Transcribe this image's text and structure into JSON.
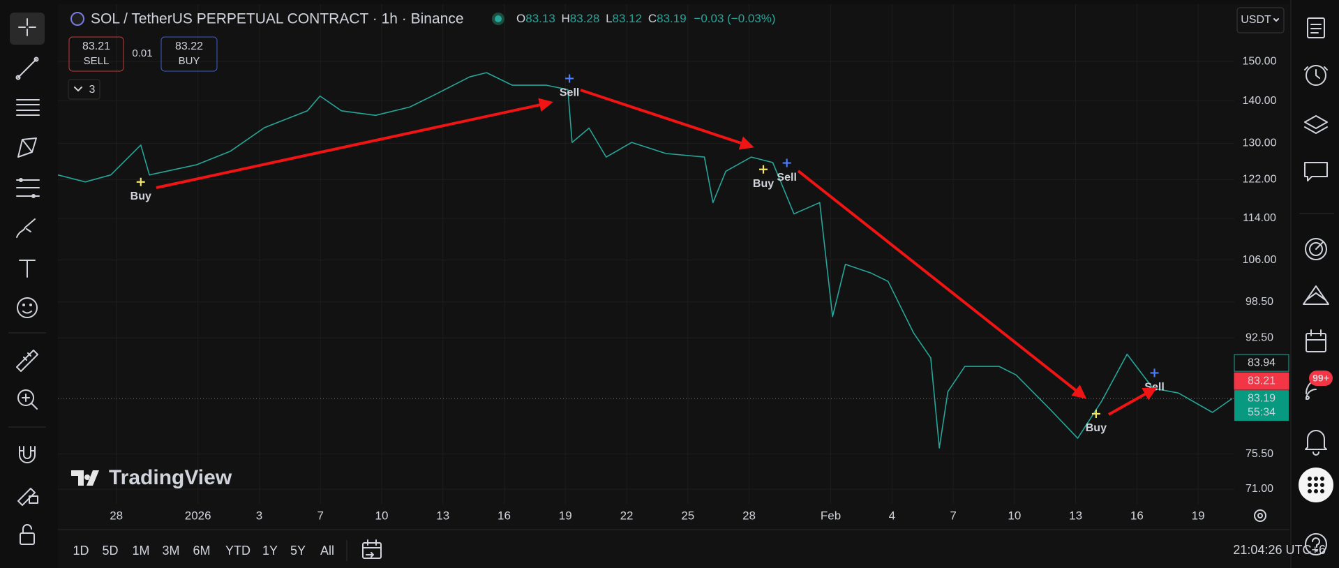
{
  "header": {
    "symbol_title": "SOL / TetherUS PERPETUAL CONTRACT · 1h · Binance",
    "ohlc": [
      {
        "key": "O",
        "value": 83.13
      },
      {
        "key": "H",
        "value": 83.28
      },
      {
        "key": "L",
        "value": 83.12
      },
      {
        "key": "C",
        "value": 83.19
      }
    ],
    "change": "−0.03 (−0.03%)"
  },
  "order_panel": {
    "sell_price": "83.21",
    "sell_label": "SELL",
    "quantity": "0.01",
    "buy_price": "83.22",
    "buy_label": "BUY"
  },
  "indicators_count": "3",
  "currency": "USDT",
  "logo": "TradingView",
  "notifications_badge": "99+",
  "bottom_bar": {
    "ranges": [
      "1D",
      "5D",
      "1M",
      "3M",
      "6M",
      "YTD",
      "1Y",
      "5Y",
      "All"
    ],
    "clock": "21:04:26 UTC+6"
  },
  "chart_data": {
    "type": "line",
    "log": true,
    "grid": true,
    "xlim": [
      -6.86,
      50.67
    ],
    "ylim": [
      69.2,
      165.8
    ],
    "xticks": [
      {
        "value": -4,
        "label": "28"
      },
      {
        "value": 0,
        "label": "2026"
      },
      3,
      {
        "value": 6,
        "label": "7"
      },
      {
        "value": 9,
        "label": "10"
      },
      {
        "value": 12,
        "label": "13"
      },
      {
        "value": 15,
        "label": "16"
      },
      {
        "value": 18,
        "label": "19"
      },
      {
        "value": 21,
        "label": "22"
      },
      {
        "value": 24,
        "label": "25"
      },
      {
        "value": 27,
        "label": "28"
      },
      {
        "value": 31,
        "label": "Feb"
      },
      {
        "value": 34,
        "label": "4"
      },
      {
        "value": 37,
        "label": "7"
      },
      {
        "value": 40,
        "label": "10"
      },
      {
        "value": 43,
        "label": "13"
      },
      {
        "value": 46,
        "label": "16"
      },
      {
        "value": 49,
        "label": "19"
      }
    ],
    "yticks": [
      {
        "value": 150,
        "label": "150.00"
      },
      {
        "value": 140,
        "label": "140.00"
      },
      {
        "value": 130,
        "label": "130.00"
      },
      {
        "value": 122,
        "label": "122.00"
      },
      {
        "value": 114,
        "label": "114.00"
      },
      {
        "value": 106,
        "label": "106.00"
      },
      {
        "value": 98.5,
        "label": "98.50"
      },
      {
        "value": 92.5,
        "label": "92.50"
      },
      {
        "value": 75.5,
        "label": "75.50"
      },
      {
        "value": 71,
        "label": "71.00"
      }
    ],
    "x": [
      -6.86,
      -5.52,
      -4.27,
      -2.8,
      -2.38,
      -0.08,
      1.59,
      3.26,
      5.36,
      5.98,
      7.03,
      8.7,
      10.38,
      11.63,
      13.31,
      14.14,
      15.4,
      17.07,
      18.12,
      18.33,
      19.16,
      20.0,
      21.25,
      22.93,
      24.81,
      25.23,
      25.86,
      27.11,
      28.16,
      29.2,
      30.46,
      31.09,
      31.72,
      32.97,
      33.81,
      35.06,
      35.9,
      36.32,
      36.74,
      37.57,
      39.25,
      40.08,
      41.76,
      43.1,
      44.27,
      45.52,
      46.78,
      48.03,
      49.7,
      50.67
    ],
    "series": [
      {
        "color": "#26a69a",
        "values": [
          123.0,
          121.5,
          123.0,
          129.6,
          123.0,
          125.2,
          128.2,
          133.6,
          137.6,
          141.2,
          137.6,
          136.5,
          138.5,
          141.6,
          146.0,
          147.1,
          143.9,
          143.9,
          142.8,
          130.2,
          133.5,
          126.9,
          130.2,
          127.7,
          126.9,
          117.2,
          123.8,
          126.9,
          125.7,
          114.9,
          117.2,
          96.0,
          105.2,
          103.6,
          102.1,
          93.3,
          89.3,
          76.3,
          84.2,
          88.0,
          88.0,
          86.7,
          81.6,
          77.6,
          82.8,
          89.9,
          84.7,
          84.0,
          81.2,
          83.19
        ]
      }
    ],
    "annotations": [
      {
        "text": "Buy",
        "x": -2.8,
        "y": 121.5,
        "color": "#f5e663"
      },
      {
        "text": "Sell",
        "x": 18.2,
        "y": 145.6,
        "color": "#4c7dff"
      },
      {
        "text": "Buy",
        "x": 27.7,
        "y": 124.2,
        "color": "#f5e663"
      },
      {
        "text": "Sell",
        "x": 28.85,
        "y": 125.6,
        "color": "#4c7dff"
      },
      {
        "text": "Buy",
        "x": 44.0,
        "y": 81.0,
        "color": "#f5e663"
      },
      {
        "text": "Sell",
        "x": 46.86,
        "y": 87.0,
        "color": "#4c7dff"
      }
    ],
    "price_tags": [
      {
        "value": 83.94,
        "label": "83.94"
      },
      {
        "value": 83.21,
        "label": "83.21"
      }
    ],
    "last_price": {
      "value": 83.19,
      "label": "83.19",
      "countdown": "55:34"
    }
  }
}
